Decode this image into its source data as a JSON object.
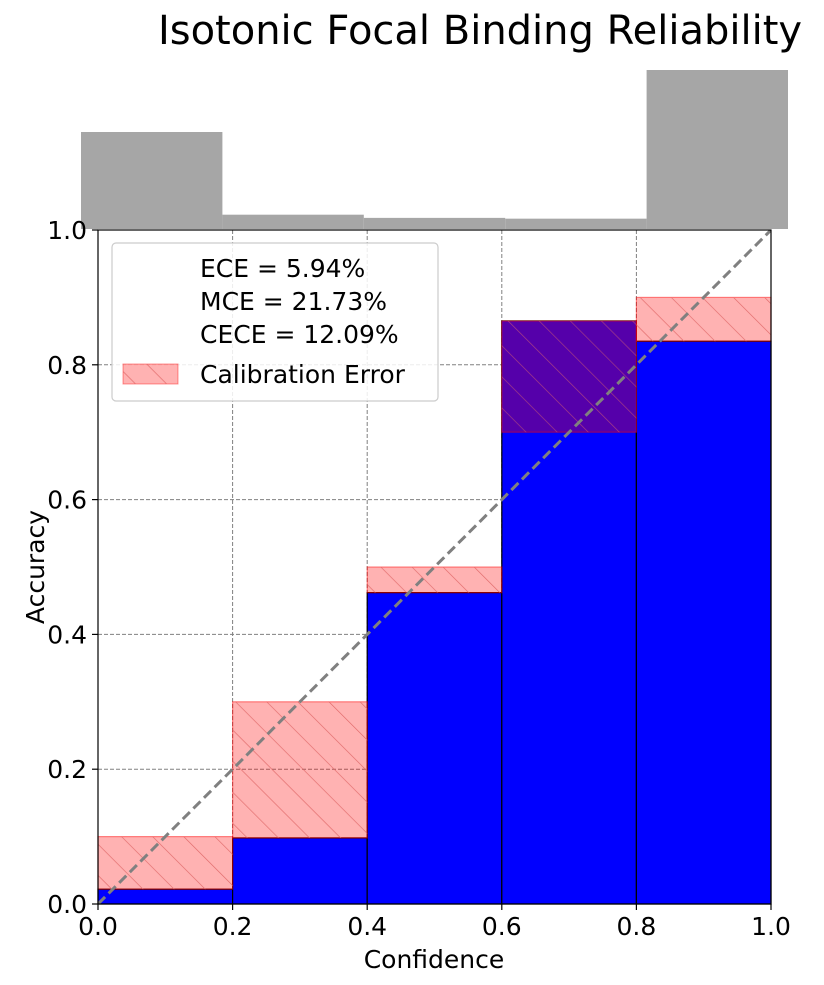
{
  "chart_data": {
    "type": "bar",
    "title": "Isotonic Focal Binding Reliability",
    "xlabel": "Confidence",
    "ylabel": "Accuracy",
    "xlim": [
      0.0,
      1.0
    ],
    "ylim": [
      0.0,
      1.0
    ],
    "x_ticks": [
      "0.0",
      "0.2",
      "0.4",
      "0.6",
      "0.8",
      "1.0"
    ],
    "y_ticks": [
      "0.0",
      "0.2",
      "0.4",
      "0.6",
      "0.8",
      "1.0"
    ],
    "grid": true,
    "bins": [
      {
        "left": 0.0,
        "right": 0.2,
        "accuracy": 0.022,
        "expected": 0.1
      },
      {
        "left": 0.2,
        "right": 0.4,
        "accuracy": 0.098,
        "expected": 0.3
      },
      {
        "left": 0.4,
        "right": 0.6,
        "accuracy": 0.462,
        "expected": 0.5
      },
      {
        "left": 0.6,
        "right": 0.8,
        "accuracy": 0.865,
        "expected": 0.7
      },
      {
        "left": 0.8,
        "right": 1.0,
        "accuracy": 0.835,
        "expected": 0.9
      }
    ],
    "histogram": {
      "bins": [
        0.0,
        0.2,
        0.4,
        0.6,
        0.8
      ],
      "relative_counts": [
        0.61,
        0.09,
        0.07,
        0.065,
        1.0
      ]
    },
    "diagonal": {
      "from": [
        0.0,
        0.0
      ],
      "to": [
        1.0,
        1.0
      ],
      "style": "dashed",
      "color": "#808080"
    },
    "legend": {
      "placement": "top-left",
      "stats": [
        "ECE = 5.94%",
        "MCE = 21.73%",
        "CECE = 12.09%"
      ],
      "entries": [
        {
          "label": "Calibration Error",
          "color": "#ff0000",
          "alpha": 0.3,
          "hatch": "\\\\"
        }
      ]
    },
    "colors": {
      "accuracy_bar": "#0000ff",
      "gap_fill": "#ff0000",
      "gap_overlap": "#5500aa",
      "histogram": "#a6a6a6",
      "grid": "#808080"
    }
  }
}
